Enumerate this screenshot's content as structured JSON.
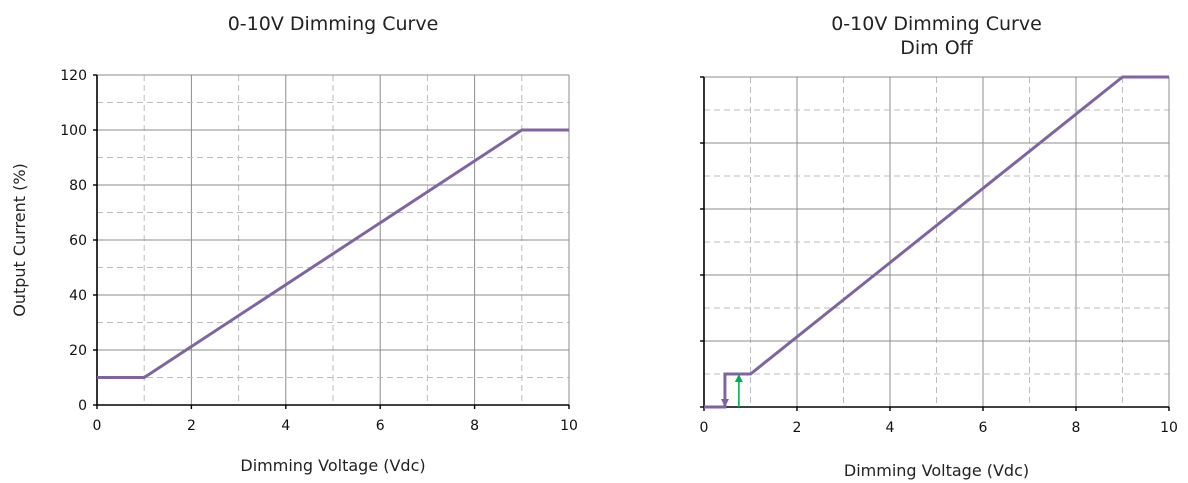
{
  "chart_data": [
    {
      "type": "line",
      "title": "0-10V Dimming Curve",
      "xlabel": "Dimming Voltage (Vdc)",
      "ylabel": "Output Current (%)",
      "xlim": [
        0,
        10
      ],
      "ylim": [
        0,
        120
      ],
      "xticks": [
        0,
        2,
        4,
        6,
        8,
        10
      ],
      "yticks": [
        0,
        20,
        40,
        60,
        80,
        100,
        120
      ],
      "grid": true,
      "series": [
        {
          "color": "#8064a2",
          "x": [
            0,
            1,
            9,
            10
          ],
          "y": [
            10,
            10,
            100,
            100
          ]
        }
      ]
    },
    {
      "type": "line",
      "title": "0-10V Dimming Curve\nDim Off",
      "xlabel": "Dimming Voltage (Vdc)",
      "ylabel": "",
      "xlim": [
        0,
        10
      ],
      "ylim": [
        0,
        100
      ],
      "xticks": [
        0,
        2,
        4,
        6,
        8,
        10
      ],
      "yticks": [],
      "grid": true,
      "series": [
        {
          "color": "#8064a2",
          "x": [
            0,
            0.45,
            0.45,
            1,
            9,
            10
          ],
          "y": [
            0,
            0,
            10,
            10,
            100,
            100
          ]
        }
      ],
      "arrows": [
        {
          "color": "#8064a2",
          "x": 0.45,
          "from": 10,
          "to": 0
        },
        {
          "color": "#00b050",
          "x": 0.75,
          "from": 0,
          "to": 10
        }
      ]
    }
  ]
}
